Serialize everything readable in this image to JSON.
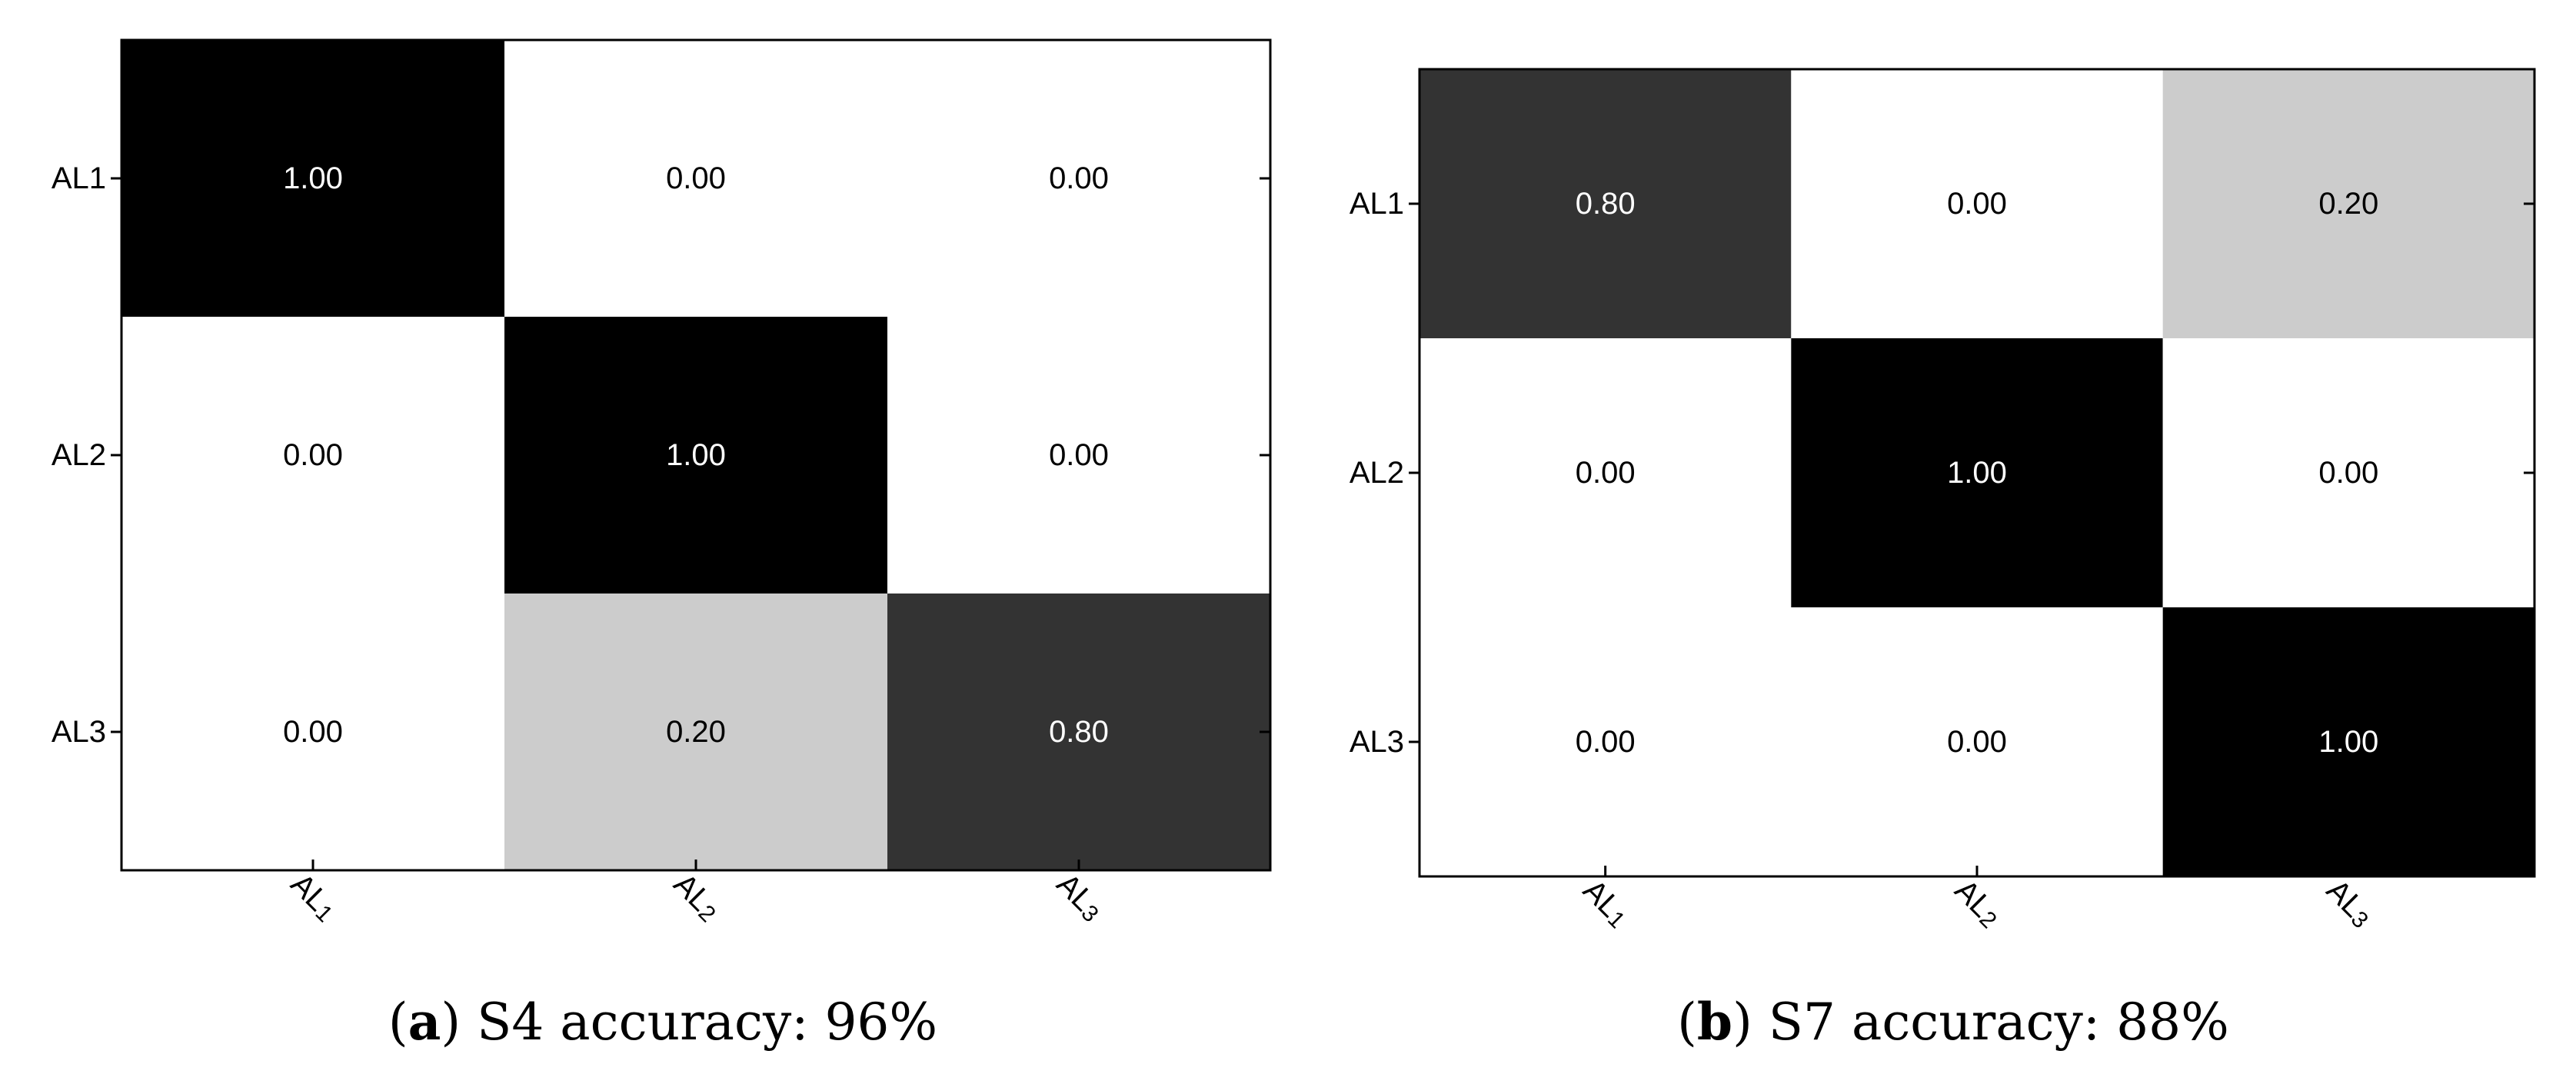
{
  "chart_data": [
    {
      "type": "heatmap",
      "caption": {
        "letter": "a",
        "text": "S4 accuracy: 96%"
      },
      "row_labels": [
        "AL1",
        "AL2",
        "AL3"
      ],
      "col_labels": [
        "AL",
        "AL",
        "AL"
      ],
      "col_label_subscripts": [
        "1",
        "2",
        "3"
      ],
      "values": [
        [
          1.0,
          0.0,
          0.0
        ],
        [
          0.0,
          1.0,
          0.0
        ],
        [
          0.0,
          0.2,
          0.8
        ]
      ],
      "value_labels": [
        [
          "1.00",
          "0.00",
          "0.00"
        ],
        [
          "0.00",
          "1.00",
          "0.00"
        ],
        [
          "0.00",
          "0.20",
          "0.80"
        ]
      ],
      "colormap": {
        "low": "#ffffff",
        "high": "#000000"
      },
      "range": [
        0,
        1
      ],
      "grid": false
    },
    {
      "type": "heatmap",
      "caption": {
        "letter": "b",
        "text": "S7 accuracy: 88%"
      },
      "row_labels": [
        "AL1",
        "AL2",
        "AL3"
      ],
      "col_labels": [
        "AL",
        "AL",
        "AL"
      ],
      "col_label_subscripts": [
        "1",
        "2",
        "3"
      ],
      "values": [
        [
          0.8,
          0.0,
          0.2
        ],
        [
          0.0,
          1.0,
          0.0
        ],
        [
          0.0,
          0.0,
          1.0
        ]
      ],
      "value_labels": [
        [
          "0.80",
          "0.00",
          "0.20"
        ],
        [
          "0.00",
          "1.00",
          "0.00"
        ],
        [
          "0.00",
          "0.00",
          "1.00"
        ]
      ],
      "colormap": {
        "low": "#ffffff",
        "high": "#000000"
      },
      "range": [
        0,
        1
      ],
      "grid": false
    }
  ]
}
